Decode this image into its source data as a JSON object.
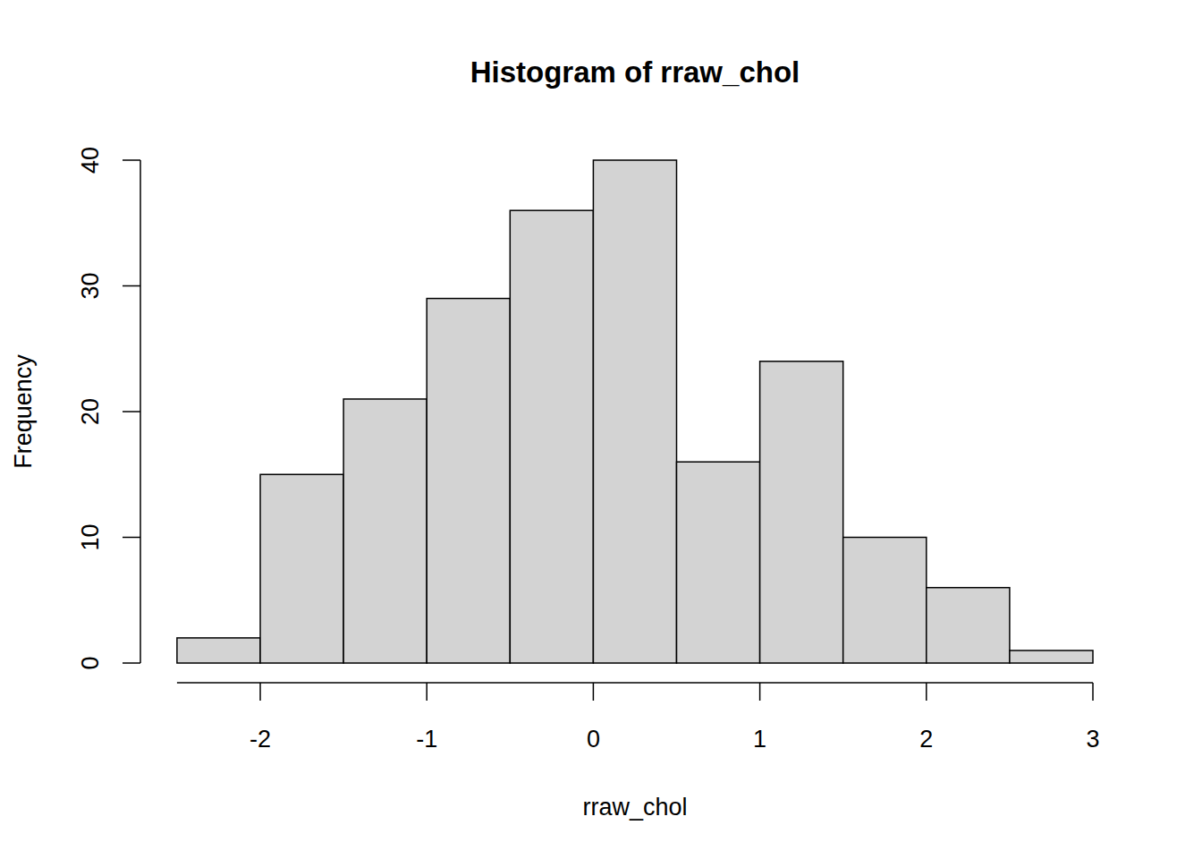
{
  "chart_data": {
    "type": "histogram",
    "title": "Histogram of rraw_chol",
    "x_label": "rraw_chol",
    "y_label": "Frequency",
    "bins": [
      -2.5,
      -2,
      -1.5,
      -1,
      -0.5,
      0,
      0.5,
      1,
      1.5,
      2,
      2.5,
      3
    ],
    "values": [
      2,
      15,
      21,
      29,
      36,
      40,
      16,
      24,
      10,
      6,
      1
    ],
    "color": "#d3d3d3",
    "xlim": [
      -2.5,
      3
    ],
    "ylim": [
      0,
      40
    ],
    "xticks": [
      -2,
      -1,
      0,
      1,
      2,
      3
    ],
    "yticks": [
      0,
      10,
      20,
      30,
      40
    ]
  }
}
